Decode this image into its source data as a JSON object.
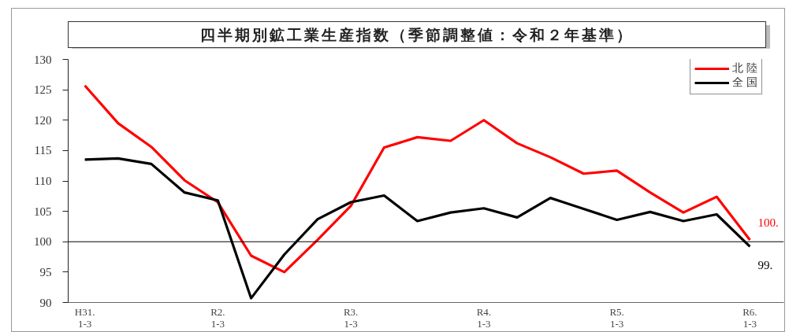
{
  "chart_data": {
    "type": "line",
    "title": "四半期別鉱工業生産指数（季節調整値：令和２年基準）",
    "categories": [
      "H31.\n1-3",
      null,
      null,
      null,
      "R2.\n1-3",
      null,
      null,
      null,
      "R3.\n1-3",
      null,
      null,
      null,
      "R4.\n1-3",
      null,
      null,
      null,
      "R5.\n1-3",
      null,
      null,
      null,
      "R6.\n1-3"
    ],
    "series": [
      {
        "name": "北 陸",
        "color": "#ff0000",
        "values": [
          125.7,
          119.5,
          115.6,
          110.1,
          106.5,
          97.7,
          95.0,
          100.3,
          105.9,
          115.5,
          117.2,
          116.6,
          120.0,
          116.2,
          113.9,
          111.2,
          111.7,
          108.1,
          104.8,
          107.4,
          100.3
        ],
        "value_labels": [
          null,
          null,
          null,
          null,
          null,
          null,
          null,
          null,
          null,
          null,
          null,
          null,
          null,
          null,
          null,
          null,
          null,
          null,
          null,
          null,
          "100."
        ]
      },
      {
        "name": "全 国",
        "color": "#000000",
        "values": [
          113.5,
          113.7,
          112.8,
          108.1,
          106.8,
          90.7,
          97.9,
          103.7,
          106.5,
          107.6,
          103.4,
          104.8,
          105.5,
          104.0,
          107.2,
          105.4,
          103.6,
          104.9,
          103.4,
          104.5,
          99.2
        ],
        "value_labels": [
          null,
          null,
          null,
          null,
          null,
          null,
          null,
          null,
          null,
          null,
          null,
          null,
          null,
          null,
          null,
          null,
          null,
          null,
          null,
          null,
          "99."
        ]
      }
    ],
    "ylim": [
      90,
      130
    ],
    "yticks": [
      90,
      95,
      100,
      105,
      110,
      115,
      120,
      125,
      130
    ],
    "ref_lines": [
      {
        "axis": "y",
        "value": 100,
        "color": "#000000"
      }
    ],
    "legend": "top right",
    "line_style": "solid",
    "marker": "none"
  }
}
